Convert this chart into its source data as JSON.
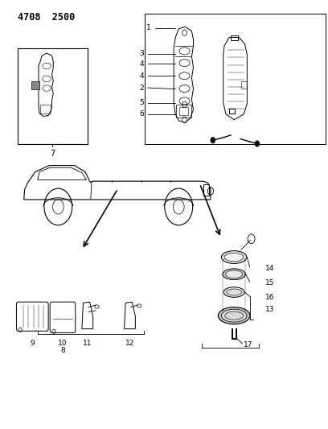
{
  "title": "4708  2500",
  "bg_color": "#ffffff",
  "line_color": "#000000",
  "fig_width": 4.08,
  "fig_height": 5.33,
  "dpi": 100
}
